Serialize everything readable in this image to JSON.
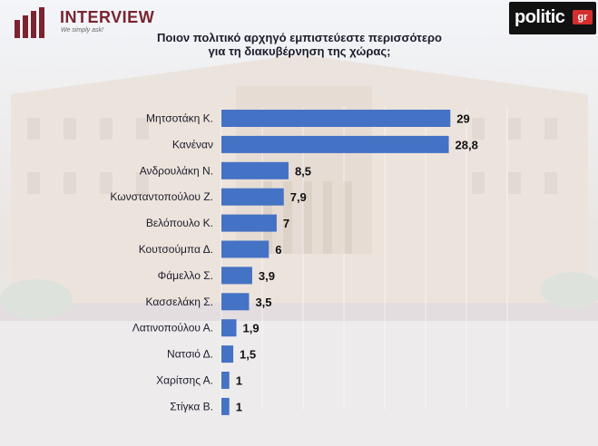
{
  "header": {
    "logo_left_text": "INTERVIEW",
    "logo_left_tagline": "We simply ask!",
    "logo_right_text": "politic",
    "logo_right_badge": "gr"
  },
  "chart_data": {
    "type": "bar",
    "orientation": "horizontal",
    "title_line1": "Ποιον πολιτικό αρχηγό εμπιστεύεστε περισσότερο",
    "title_line2": "για τη διακυβέρνηση της χώρας;",
    "categories": [
      "Μητσοτάκη Κ.",
      "Κανέναν",
      "Ανδρουλάκη Ν.",
      "Κωνσταντοπούλου Ζ.",
      "Βελόπουλο Κ.",
      "Κουτσούμπα Δ.",
      "Φάμελλο Σ.",
      "Κασσελάκη Σ.",
      "Λατινοπούλου Α.",
      "Νατσιό Δ.",
      "Χαρίτσης Α.",
      "Στίγκα Β."
    ],
    "values": [
      29,
      28.8,
      8.5,
      7.9,
      7,
      6,
      3.9,
      3.5,
      1.9,
      1.5,
      1,
      1
    ],
    "value_labels": [
      "29",
      "28,8",
      "8,5",
      "7,9",
      "7",
      "6",
      "3,9",
      "3,5",
      "1,9",
      "1,5",
      "1",
      "1"
    ],
    "xlim": [
      0,
      30
    ],
    "bar_color": "#4472c4",
    "grid": false,
    "legend": "none"
  }
}
